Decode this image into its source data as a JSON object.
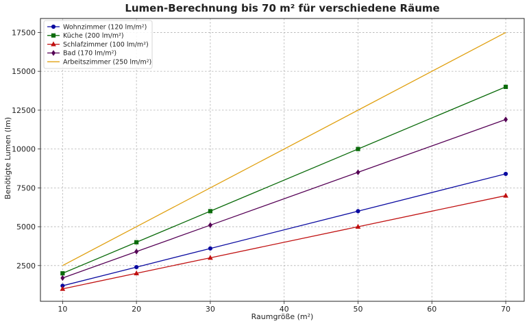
{
  "chart_data": {
    "type": "line",
    "title": "Lumen-Berechnung bis 70 m² für verschiedene Räume",
    "xlabel": "Raumgröße (m²)",
    "ylabel": "Benötigte Lumen (lm)",
    "xlim": [
      7,
      72.5
    ],
    "ylim": [
      200,
      18400
    ],
    "xticks": [
      10,
      20,
      30,
      40,
      50,
      60,
      70
    ],
    "yticks": [
      2500,
      5000,
      7500,
      10000,
      12500,
      15000,
      17500
    ],
    "grid": true,
    "legend_position": "top-left",
    "x": [
      10,
      20,
      30,
      50,
      70
    ],
    "series": [
      {
        "name": "Wohnzimmer (120 lm/m²)",
        "values": [
          1200,
          2400,
          3600,
          6000,
          8400
        ],
        "color": "#0a0aa0",
        "marker": "circle"
      },
      {
        "name": "Küche (200 lm/m²)",
        "values": [
          2000,
          4000,
          6000,
          10000,
          14000
        ],
        "color": "#0b6b0b",
        "marker": "square"
      },
      {
        "name": "Schlafzimmer (100 lm/m²)",
        "values": [
          1000,
          2000,
          3000,
          5000,
          7000
        ],
        "color": "#c01010",
        "marker": "triangle"
      },
      {
        "name": "Bad (170 lm/m²)",
        "values": [
          1700,
          3400,
          5100,
          8500,
          11900
        ],
        "color": "#550055",
        "marker": "diamond"
      },
      {
        "name": "Arbeitszimmer (250 lm/m²)",
        "values": [
          2500,
          5000,
          7500,
          12500,
          17500
        ],
        "color": "#e0a010",
        "marker": "none"
      }
    ]
  }
}
